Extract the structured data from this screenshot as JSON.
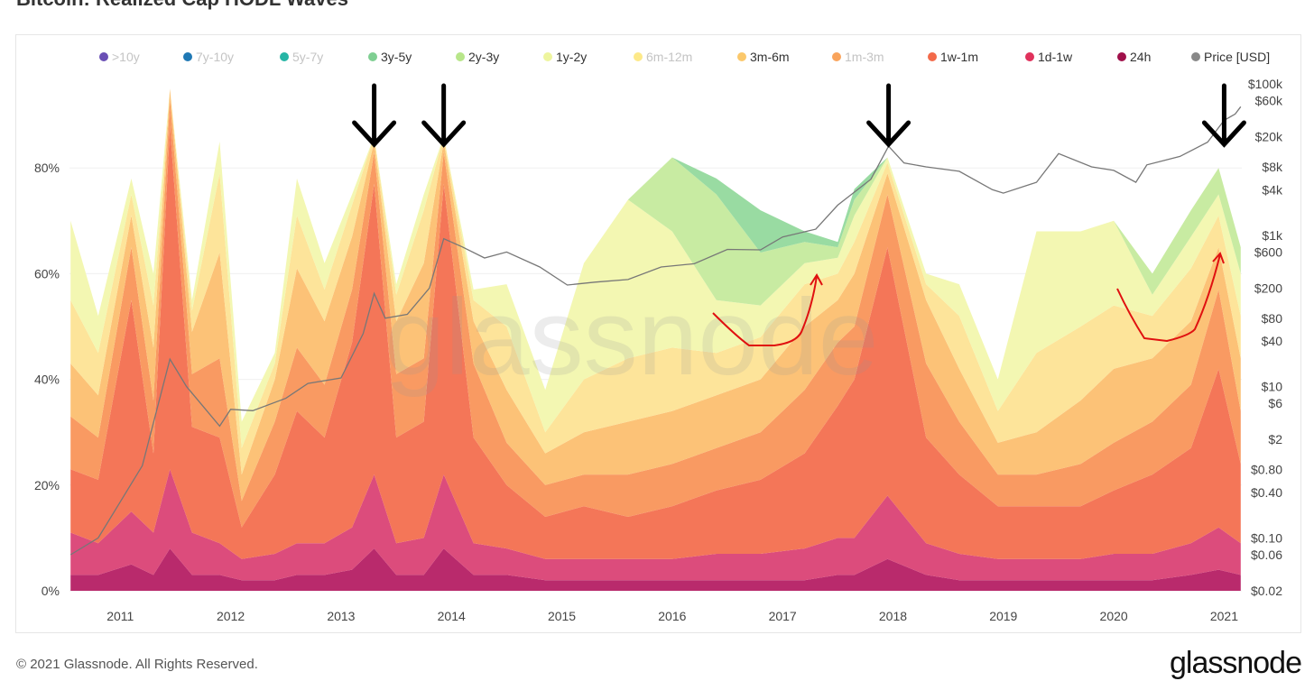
{
  "title": "Bitcoin: Realized Cap HODL Waves",
  "footer": "© 2021 Glassnode. All Rights Reserved.",
  "logo": "glassnode",
  "watermark": "glassnode",
  "chart_data": {
    "type": "area",
    "stacked": true,
    "legend_position": "top",
    "legend": [
      {
        "name": ">10y",
        "color": "#6a4fb5",
        "enabled": false
      },
      {
        "name": "7y-10y",
        "color": "#1f78b4",
        "enabled": false
      },
      {
        "name": "5y-7y",
        "color": "#26b5a5",
        "enabled": false
      },
      {
        "name": "3y-5y",
        "color": "#7fcf92",
        "enabled": true
      },
      {
        "name": "2y-3y",
        "color": "#b8e68a",
        "enabled": true
      },
      {
        "name": "1y-2y",
        "color": "#eef59e",
        "enabled": true
      },
      {
        "name": "6m-12m",
        "color": "#fde989",
        "enabled": false
      },
      {
        "name": "3m-6m",
        "color": "#fbc86b",
        "enabled": true
      },
      {
        "name": "1m-3m",
        "color": "#f9a45c",
        "enabled": false
      },
      {
        "name": "1w-1m",
        "color": "#f36a4a",
        "enabled": true
      },
      {
        "name": "1d-1w",
        "color": "#e0325c",
        "enabled": true
      },
      {
        "name": "24h",
        "color": "#a0104a",
        "enabled": true
      },
      {
        "name": "Price [USD]",
        "color": "#888888",
        "enabled": true
      }
    ],
    "x": [
      2010.55,
      2010.8,
      2011.1,
      2011.3,
      2011.45,
      2011.65,
      2011.9,
      2012.1,
      2012.4,
      2012.6,
      2012.85,
      2013.1,
      2013.3,
      2013.5,
      2013.75,
      2013.93,
      2014.2,
      2014.5,
      2014.85,
      2015.2,
      2015.6,
      2016.0,
      2016.4,
      2016.8,
      2017.2,
      2017.5,
      2017.65,
      2017.95,
      2018.3,
      2018.6,
      2018.95,
      2019.3,
      2019.7,
      2020.0,
      2020.35,
      2020.7,
      2020.95,
      2021.15
    ],
    "series": [
      {
        "name": "24h",
        "fill": "#b92a6c",
        "values": [
          3,
          3,
          5,
          3,
          8,
          3,
          3,
          2,
          2,
          3,
          3,
          4,
          8,
          3,
          3,
          8,
          3,
          3,
          2,
          2,
          2,
          2,
          2,
          2,
          2,
          3,
          3,
          6,
          3,
          2,
          2,
          2,
          2,
          2,
          2,
          3,
          4,
          3
        ]
      },
      {
        "name": "1d-1w",
        "fill": "#dc4c7c",
        "values": [
          8,
          6,
          10,
          8,
          15,
          8,
          6,
          4,
          5,
          6,
          6,
          8,
          14,
          6,
          7,
          14,
          6,
          5,
          4,
          4,
          4,
          4,
          5,
          5,
          6,
          7,
          7,
          12,
          6,
          5,
          4,
          4,
          4,
          5,
          5,
          6,
          8,
          6
        ]
      },
      {
        "name": "1w-1m",
        "fill": "#f47658",
        "values": [
          12,
          12,
          40,
          15,
          65,
          20,
          20,
          6,
          15,
          25,
          20,
          35,
          55,
          20,
          22,
          55,
          20,
          12,
          8,
          10,
          8,
          10,
          12,
          14,
          18,
          25,
          30,
          47,
          20,
          15,
          10,
          10,
          10,
          12,
          15,
          18,
          30,
          15
        ]
      },
      {
        "name": "1m-3m",
        "fill": "#f99a62",
        "values": [
          10,
          8,
          10,
          10,
          5,
          10,
          15,
          5,
          10,
          12,
          10,
          10,
          6,
          12,
          12,
          6,
          14,
          8,
          6,
          6,
          8,
          8,
          8,
          9,
          12,
          12,
          10,
          10,
          14,
          10,
          6,
          6,
          8,
          9,
          10,
          12,
          15,
          10
        ]
      },
      {
        "name": "3m-6m",
        "fill": "#fcc277",
        "values": [
          10,
          8,
          6,
          10,
          2,
          8,
          20,
          5,
          8,
          15,
          12,
          10,
          2,
          10,
          18,
          2,
          8,
          10,
          6,
          8,
          10,
          10,
          10,
          10,
          12,
          8,
          10,
          4,
          12,
          10,
          6,
          8,
          12,
          14,
          12,
          12,
          8,
          10
        ]
      },
      {
        "name": "6m-12m",
        "fill": "#fde49a",
        "values": [
          12,
          8,
          4,
          8,
          0,
          4,
          15,
          5,
          3,
          10,
          6,
          6,
          1,
          5,
          10,
          1,
          4,
          12,
          4,
          10,
          12,
          12,
          8,
          8,
          8,
          5,
          6,
          2,
          3,
          10,
          6,
          15,
          14,
          12,
          8,
          10,
          6,
          8
        ]
      },
      {
        "name": "1y-2y",
        "fill": "#f3f7b2",
        "values": [
          15,
          7,
          3,
          6,
          0,
          2,
          6,
          5,
          2,
          7,
          5,
          2,
          0,
          2,
          3,
          0,
          2,
          8,
          8,
          22,
          30,
          22,
          10,
          6,
          4,
          3,
          5,
          1,
          2,
          6,
          6,
          23,
          18,
          16,
          4,
          6,
          4,
          8
        ]
      },
      {
        "name": "2y-3y",
        "fill": "#c8eba2",
        "values": [
          0,
          0,
          0,
          0,
          0,
          0,
          0,
          0,
          0,
          0,
          0,
          0,
          0,
          0,
          0,
          0,
          0,
          0,
          0,
          0,
          0,
          14,
          20,
          10,
          4,
          2,
          3,
          0,
          0,
          0,
          0,
          0,
          0,
          0,
          4,
          5,
          5,
          5
        ]
      },
      {
        "name": "3y-5y",
        "fill": "#99dba2",
        "values": [
          0,
          0,
          0,
          0,
          0,
          0,
          0,
          0,
          0,
          0,
          0,
          0,
          0,
          0,
          0,
          0,
          0,
          0,
          0,
          0,
          0,
          0,
          3,
          8,
          2,
          1,
          2,
          0,
          0,
          0,
          0,
          0,
          0,
          0,
          0,
          0,
          0,
          0
        ]
      }
    ],
    "price": {
      "name": "Price [USD]",
      "x": [
        2010.55,
        2010.8,
        2011.0,
        2011.2,
        2011.45,
        2011.6,
        2011.9,
        2012.0,
        2012.2,
        2012.5,
        2012.7,
        2013.0,
        2013.2,
        2013.3,
        2013.4,
        2013.6,
        2013.8,
        2013.93,
        2014.1,
        2014.3,
        2014.5,
        2014.8,
        2015.05,
        2015.3,
        2015.6,
        2015.9,
        2016.2,
        2016.5,
        2016.8,
        2017.0,
        2017.3,
        2017.5,
        2017.8,
        2017.96,
        2018.1,
        2018.3,
        2018.6,
        2018.9,
        2019.0,
        2019.3,
        2019.5,
        2019.8,
        2020.0,
        2020.2,
        2020.3,
        2020.6,
        2020.85,
        2021.0,
        2021.1,
        2021.15
      ],
      "values": [
        0.06,
        0.1,
        0.3,
        0.9,
        23,
        10,
        3,
        5,
        4.8,
        7,
        11,
        13,
        50,
        170,
        80,
        90,
        200,
        900,
        700,
        500,
        600,
        380,
        220,
        240,
        260,
        380,
        420,
        650,
        640,
        950,
        1200,
        2500,
        5500,
        15000,
        9000,
        8000,
        7000,
        4000,
        3600,
        5000,
        12000,
        8000,
        7200,
        5000,
        8500,
        11000,
        17000,
        33000,
        40000,
        50000
      ]
    },
    "xlim": [
      2010.54,
      2021.16
    ],
    "x_ticks": [
      "2011",
      "2012",
      "2013",
      "2014",
      "2015",
      "2016",
      "2017",
      "2018",
      "2019",
      "2020",
      "2021"
    ],
    "ylim": [
      0,
      100
    ],
    "y_ticks": [
      "0%",
      "20%",
      "40%",
      "60%",
      "80%"
    ],
    "y2_scale": "log",
    "y2lim": [
      0.02,
      100000
    ],
    "y2_ticks": [
      "$0.02",
      "$0.06",
      "$0.10",
      "$0.40",
      "$0.80",
      "$2",
      "$6",
      "$10",
      "$40",
      "$80",
      "$200",
      "$600",
      "$1k",
      "$4k",
      "$8k",
      "$20k",
      "$60k",
      "$100k"
    ],
    "annotations": {
      "arrows_at": [
        2013.3,
        2013.93,
        2017.96,
        2021.0
      ],
      "curves": 2
    }
  }
}
